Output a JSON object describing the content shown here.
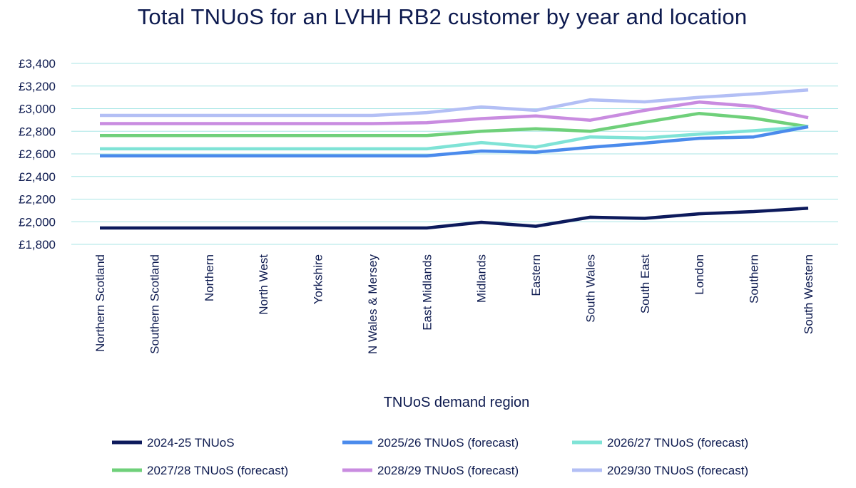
{
  "chart_data": {
    "type": "line",
    "title": "Total TNUoS for an LVHH RB2 customer by year and location",
    "xlabel": "TNUoS demand region",
    "ylabel": "",
    "ylim": [
      1800,
      3400
    ],
    "ytick_step": 200,
    "ytick_labels": [
      "£1,800",
      "£2,000",
      "£2,200",
      "£2,400",
      "£2,600",
      "£2,800",
      "£3,000",
      "£3,200",
      "£3,400"
    ],
    "grid": true,
    "legend_position": "bottom",
    "categories": [
      "Northern Scotland",
      "Southern Scotland",
      "Northern",
      "North West",
      "Yorkshire",
      "N Wales & Mersey",
      "East Midlands",
      "Midlands",
      "Eastern",
      "South Wales",
      "South East",
      "London",
      "Southern",
      "South Western"
    ],
    "series": [
      {
        "name": "2024-25 TNUoS",
        "color": "#0d1a5c",
        "values": [
          1945,
          1945,
          1945,
          1945,
          1945,
          1945,
          1945,
          1995,
          1960,
          2040,
          2030,
          2070,
          2090,
          2120
        ]
      },
      {
        "name": "2025/26 TNUoS (forecast)",
        "color": "#4b8bec",
        "values": [
          2583,
          2583,
          2583,
          2583,
          2583,
          2583,
          2583,
          2625,
          2615,
          2658,
          2695,
          2738,
          2750,
          2840
        ]
      },
      {
        "name": "2026/27 TNUoS (forecast)",
        "color": "#7fe3d6",
        "values": [
          2645,
          2645,
          2645,
          2645,
          2645,
          2645,
          2645,
          2700,
          2660,
          2750,
          2740,
          2775,
          2805,
          2840
        ]
      },
      {
        "name": "2027/28 TNUoS (forecast)",
        "color": "#6fd07a",
        "values": [
          2762,
          2762,
          2762,
          2762,
          2762,
          2762,
          2762,
          2800,
          2822,
          2800,
          2880,
          2958,
          2915,
          2840
        ]
      },
      {
        "name": "2028/29 TNUoS (forecast)",
        "color": "#c98ce0",
        "values": [
          2868,
          2868,
          2868,
          2868,
          2868,
          2868,
          2875,
          2912,
          2935,
          2898,
          2985,
          3058,
          3020,
          2920
        ]
      },
      {
        "name": "2029/30 TNUoS (forecast)",
        "color": "#b3bff5",
        "values": [
          2940,
          2940,
          2940,
          2940,
          2940,
          2940,
          2965,
          3015,
          2985,
          3078,
          3060,
          3100,
          3130,
          3165
        ]
      }
    ]
  }
}
